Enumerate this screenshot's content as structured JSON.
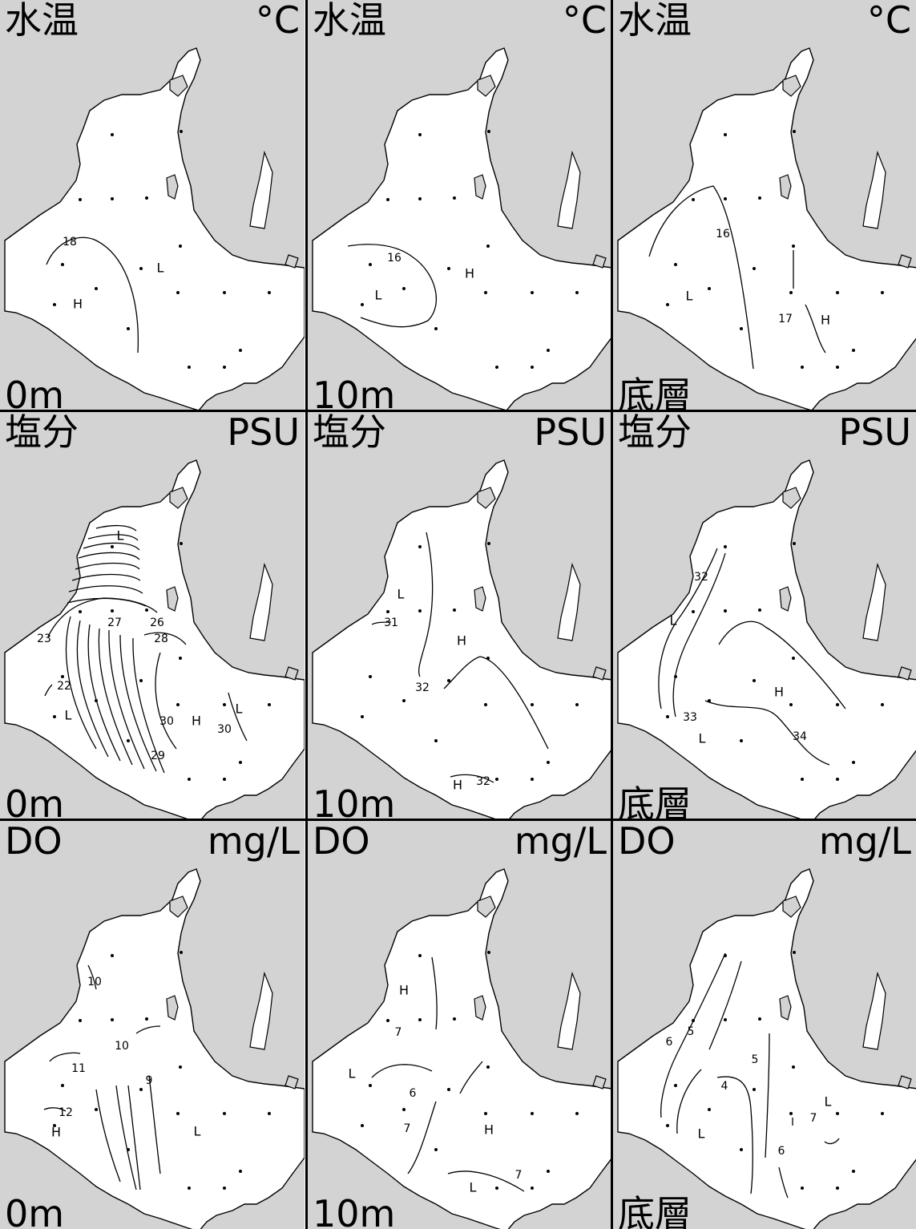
{
  "colors": {
    "sea": "#ffffff",
    "land": "#d3d3d3",
    "line": "#000000"
  },
  "rows": [
    {
      "parameter": "水温",
      "unit": "°C"
    },
    {
      "parameter": "塩分",
      "unit": "PSU"
    },
    {
      "parameter": "DO",
      "unit": "mg/L"
    }
  ],
  "columns": [
    {
      "depth": "0m"
    },
    {
      "depth": "10m"
    },
    {
      "depth": "底層"
    }
  ],
  "panels": [
    {
      "labels": [
        "18",
        "L",
        "H"
      ]
    },
    {
      "labels": [
        "16",
        "H",
        "L"
      ]
    },
    {
      "labels": [
        "16",
        "L",
        "17",
        "H"
      ]
    },
    {
      "labels": [
        "L",
        "27",
        "26",
        "23",
        "28",
        "22",
        "L",
        "30",
        "H",
        "L",
        "30",
        "29"
      ]
    },
    {
      "labels": [
        "L",
        "31",
        "H",
        "32",
        "H",
        "32"
      ]
    },
    {
      "labels": [
        "32",
        "L",
        "H",
        "33",
        "L",
        "34"
      ]
    },
    {
      "labels": [
        "10",
        "10",
        "11",
        "9",
        "12",
        "H",
        "L"
      ]
    },
    {
      "labels": [
        "H",
        "7",
        "L",
        "6",
        "7",
        "H",
        "L",
        "7"
      ]
    },
    {
      "labels": [
        "6",
        "5",
        "5",
        "4",
        "L",
        "L",
        "7",
        "6"
      ]
    }
  ]
}
